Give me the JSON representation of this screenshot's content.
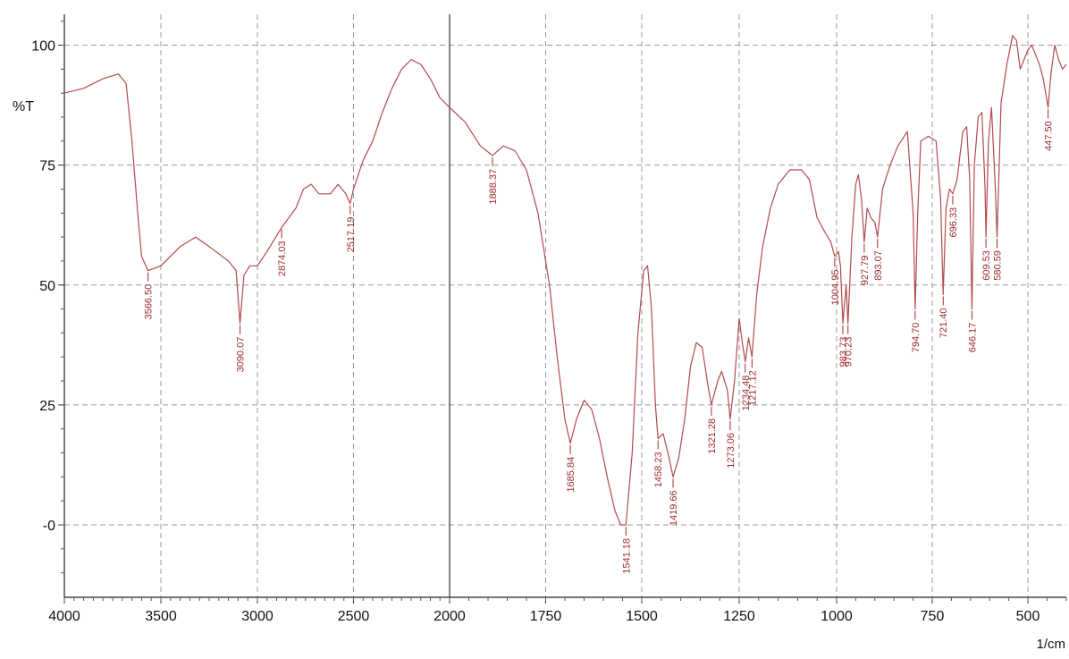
{
  "chart_data": {
    "type": "line",
    "title": "",
    "xlabel": "1/cm",
    "ylabel": "%T",
    "xlim": [
      4000,
      400
    ],
    "ylim": [
      -15,
      107
    ],
    "x_ticks": [
      4000,
      3500,
      3000,
      2500,
      2000,
      1750,
      1500,
      1250,
      1000,
      750,
      500
    ],
    "x_tick_labels": [
      "4000",
      "3500",
      "3000",
      "2500",
      "2000",
      "1750",
      "1500",
      "1250",
      "1000",
      "750",
      "500"
    ],
    "y_ticks": [
      100,
      75,
      50,
      25,
      0
    ],
    "y_tick_labels": [
      "100",
      "75",
      "50",
      "25",
      "-0"
    ],
    "grid": true,
    "line_color": "#b34a4a",
    "label_color": "#9c2b2b",
    "series": [
      {
        "points": [
          [
            4000,
            90
          ],
          [
            3900,
            91
          ],
          [
            3800,
            93
          ],
          [
            3720,
            94
          ],
          [
            3680,
            92
          ],
          [
            3650,
            80
          ],
          [
            3620,
            65
          ],
          [
            3600,
            56
          ],
          [
            3566.5,
            53
          ],
          [
            3500,
            54
          ],
          [
            3400,
            58
          ],
          [
            3320,
            60
          ],
          [
            3250,
            58
          ],
          [
            3150,
            55
          ],
          [
            3110,
            53
          ],
          [
            3090.07,
            42
          ],
          [
            3070,
            52
          ],
          [
            3040,
            54
          ],
          [
            3000,
            54
          ],
          [
            2950,
            57
          ],
          [
            2874.03,
            62
          ],
          [
            2800,
            66
          ],
          [
            2760,
            70
          ],
          [
            2720,
            71
          ],
          [
            2680,
            69
          ],
          [
            2620,
            69
          ],
          [
            2580,
            71
          ],
          [
            2540,
            69
          ],
          [
            2517.19,
            67
          ],
          [
            2500,
            70
          ],
          [
            2450,
            76
          ],
          [
            2400,
            80
          ],
          [
            2350,
            86
          ],
          [
            2300,
            91
          ],
          [
            2250,
            95
          ],
          [
            2200,
            97
          ],
          [
            2150,
            96
          ],
          [
            2100,
            93
          ],
          [
            2050,
            89
          ],
          [
            2000,
            87
          ],
          [
            1960,
            84
          ],
          [
            1920,
            79
          ],
          [
            1888.37,
            77
          ],
          [
            1860,
            79
          ],
          [
            1830,
            78
          ],
          [
            1800,
            74
          ],
          [
            1770,
            65
          ],
          [
            1740,
            50
          ],
          [
            1720,
            35
          ],
          [
            1700,
            22
          ],
          [
            1685.84,
            17
          ],
          [
            1670,
            22
          ],
          [
            1650,
            26
          ],
          [
            1630,
            24
          ],
          [
            1610,
            18
          ],
          [
            1590,
            10
          ],
          [
            1570,
            3
          ],
          [
            1555,
            0
          ],
          [
            1541.18,
            0
          ],
          [
            1525,
            15
          ],
          [
            1510,
            40
          ],
          [
            1495,
            53
          ],
          [
            1485,
            54
          ],
          [
            1475,
            45
          ],
          [
            1465,
            25
          ],
          [
            1458.23,
            18
          ],
          [
            1445,
            19
          ],
          [
            1430,
            14
          ],
          [
            1419.66,
            10
          ],
          [
            1405,
            14
          ],
          [
            1390,
            22
          ],
          [
            1375,
            33
          ],
          [
            1360,
            38
          ],
          [
            1345,
            37
          ],
          [
            1330,
            29
          ],
          [
            1321.28,
            25
          ],
          [
            1305,
            30
          ],
          [
            1295,
            32
          ],
          [
            1280,
            28
          ],
          [
            1273.06,
            22
          ],
          [
            1262,
            30
          ],
          [
            1250,
            43
          ],
          [
            1242,
            38
          ],
          [
            1234.48,
            34
          ],
          [
            1226,
            39
          ],
          [
            1217.12,
            35
          ],
          [
            1205,
            48
          ],
          [
            1190,
            58
          ],
          [
            1170,
            66
          ],
          [
            1150,
            71
          ],
          [
            1120,
            74
          ],
          [
            1090,
            74
          ],
          [
            1070,
            72
          ],
          [
            1050,
            64
          ],
          [
            1030,
            61
          ],
          [
            1015,
            59
          ],
          [
            1004.95,
            56
          ],
          [
            995,
            57
          ],
          [
            990,
            54
          ],
          [
            983.73,
            42
          ],
          [
            975,
            50
          ],
          [
            970.23,
            42
          ],
          [
            960,
            60
          ],
          [
            950,
            71
          ],
          [
            943,
            73
          ],
          [
            935,
            68
          ],
          [
            927.79,
            59
          ],
          [
            920,
            66
          ],
          [
            910,
            64
          ],
          [
            900,
            63
          ],
          [
            893.07,
            60
          ],
          [
            880,
            70
          ],
          [
            860,
            75
          ],
          [
            840,
            79
          ],
          [
            815,
            82
          ],
          [
            800,
            65
          ],
          [
            794.7,
            45
          ],
          [
            788,
            65
          ],
          [
            780,
            80
          ],
          [
            760,
            81
          ],
          [
            740,
            80
          ],
          [
            728,
            68
          ],
          [
            721.4,
            48
          ],
          [
            714,
            66
          ],
          [
            705,
            70
          ],
          [
            696.33,
            69
          ],
          [
            685,
            72
          ],
          [
            670,
            82
          ],
          [
            660,
            83
          ],
          [
            652,
            72
          ],
          [
            646.17,
            45
          ],
          [
            640,
            75
          ],
          [
            630,
            85
          ],
          [
            620,
            86
          ],
          [
            612,
            70
          ],
          [
            609.53,
            60
          ],
          [
            603,
            80
          ],
          [
            595,
            87
          ],
          [
            585,
            70
          ],
          [
            580.59,
            60
          ],
          [
            570,
            88
          ],
          [
            555,
            96
          ],
          [
            540,
            102
          ],
          [
            530,
            101
          ],
          [
            520,
            95
          ],
          [
            510,
            97
          ],
          [
            500,
            99
          ],
          [
            490,
            100
          ],
          [
            480,
            98
          ],
          [
            470,
            96
          ],
          [
            460,
            93
          ],
          [
            447.5,
            87
          ],
          [
            440,
            94
          ],
          [
            430,
            100
          ],
          [
            420,
            97
          ],
          [
            410,
            95
          ],
          [
            400,
            96
          ]
        ]
      }
    ],
    "peaks": [
      {
        "x": 3566.5,
        "y": 53,
        "label": "3566.50",
        "dir": "down"
      },
      {
        "x": 3090.07,
        "y": 42,
        "label": "3090.07",
        "dir": "down"
      },
      {
        "x": 2874.03,
        "y": 62,
        "label": "2874.03",
        "dir": "down"
      },
      {
        "x": 2517.19,
        "y": 67,
        "label": "2517.19",
        "dir": "down"
      },
      {
        "x": 1888.37,
        "y": 77,
        "label": "1888.37",
        "dir": "down"
      },
      {
        "x": 1685.84,
        "y": 17,
        "label": "1685.84",
        "dir": "down"
      },
      {
        "x": 1541.18,
        "y": 0,
        "label": "1541.18",
        "dir": "down"
      },
      {
        "x": 1458.23,
        "y": 18,
        "label": "1458.23",
        "dir": "down"
      },
      {
        "x": 1419.66,
        "y": 10,
        "label": "1419.66",
        "dir": "down"
      },
      {
        "x": 1321.28,
        "y": 25,
        "label": "1321.28",
        "dir": "down"
      },
      {
        "x": 1273.06,
        "y": 22,
        "label": "1273.06",
        "dir": "down"
      },
      {
        "x": 1234.48,
        "y": 34,
        "label": "1234.48",
        "dir": "down"
      },
      {
        "x": 1217.12,
        "y": 35,
        "label": "1217.12",
        "dir": "down"
      },
      {
        "x": 1004.95,
        "y": 56,
        "label": "1004.95",
        "dir": "down"
      },
      {
        "x": 983.73,
        "y": 42,
        "label": "983.73",
        "dir": "down"
      },
      {
        "x": 970.23,
        "y": 42,
        "label": "970.23",
        "dir": "down"
      },
      {
        "x": 927.79,
        "y": 59,
        "label": "927.79",
        "dir": "down"
      },
      {
        "x": 893.07,
        "y": 60,
        "label": "893.07",
        "dir": "down"
      },
      {
        "x": 794.7,
        "y": 45,
        "label": "794.70",
        "dir": "down"
      },
      {
        "x": 721.4,
        "y": 48,
        "label": "721.40",
        "dir": "down"
      },
      {
        "x": 696.33,
        "y": 69,
        "label": "696.33",
        "dir": "down"
      },
      {
        "x": 646.17,
        "y": 45,
        "label": "646.17",
        "dir": "down"
      },
      {
        "x": 609.53,
        "y": 60,
        "label": "609.53",
        "dir": "down"
      },
      {
        "x": 580.59,
        "y": 60,
        "label": "580.59",
        "dir": "down"
      },
      {
        "x": 447.5,
        "y": 87,
        "label": "447.50",
        "dir": "down"
      }
    ]
  }
}
